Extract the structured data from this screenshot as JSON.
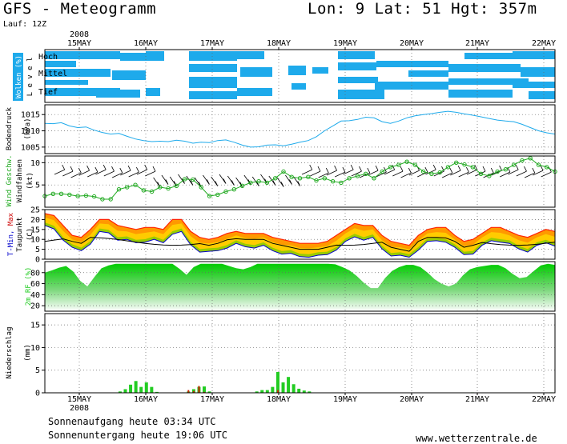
{
  "header": {
    "title": "GFS - Meteogramm",
    "location": "Lon: 9  Lat: 51  Hgt: 357m",
    "run": "Lauf: 12Z"
  },
  "footer": {
    "sunrise": "Sonnenaufgang heute 03:34 UTC",
    "sunset": "Sonnenuntergang heute 19:06 UTC",
    "credit": "www.wetterzentrale.de"
  },
  "colors": {
    "cloud": "#1eaaeb",
    "pressure": "#1eaaeb",
    "wind_speed": "#22aa22",
    "temp_max": "#ff2200",
    "temp_fill_hot": "#ff9900",
    "temp_fill_mid": "#ffcc00",
    "temp_fill_cool": "#99cc00",
    "temp_min": "#0000cc",
    "dewpoint": "#000000",
    "humidity": "#22cc22",
    "precip_rain": "#22cc22",
    "precip_conv": "#cc2200"
  },
  "chart_data": {
    "type": "line",
    "year": "2008",
    "x_axis_labels": [
      "15MAY",
      "16MAY",
      "17MAY",
      "18MAY",
      "19MAY",
      "20MAY",
      "21MAY",
      "22MAY"
    ],
    "panels": [
      {
        "name": "clouds",
        "ylabel": "Wolken (%)",
        "ylabel_colored": "Wolken",
        "ylabel_sub": "L e v e l",
        "levels": [
          "Hoch",
          "Mittel",
          "Tief"
        ]
      },
      {
        "name": "pressure",
        "ylabel": "Bodendruck",
        "ylabel2": "(hPa)",
        "ticks": [
          1005,
          1010,
          1015
        ],
        "ylim": [
          1003,
          1018
        ],
        "values": [
          1012.3,
          1012.2,
          1012.5,
          1011.5,
          1011,
          1011.2,
          1010.2,
          1009.5,
          1009,
          1009.2,
          1008.3,
          1007.5,
          1007,
          1006.7,
          1006.8,
          1006.7,
          1007.1,
          1006.8,
          1006.2,
          1006.5,
          1006.4,
          1007,
          1007.2,
          1006.5,
          1005.6,
          1005,
          1005.1,
          1005.6,
          1005.7,
          1005.4,
          1005.9,
          1006.5,
          1007,
          1008.2,
          1010,
          1011.5,
          1013,
          1013.1,
          1013.5,
          1014.2,
          1014,
          1012.8,
          1012.3,
          1013,
          1014,
          1014.6,
          1015,
          1015.3,
          1015.7,
          1016,
          1015.7,
          1015.2,
          1014.8,
          1014.3,
          1013.8,
          1013.3,
          1013,
          1012.8,
          1012,
          1011,
          1010,
          1009.4,
          1009
        ]
      },
      {
        "name": "wind",
        "ylabel": "Wind Geschw.",
        "ylabel2": "Windfahnen",
        "ylabel3": "(kt)",
        "ticks": [
          5,
          10
        ],
        "ylim": [
          0,
          11.5
        ],
        "speed_values": [
          2.5,
          3,
          3,
          2.8,
          2.5,
          2.6,
          2.4,
          1.8,
          1.8,
          4,
          4.5,
          5,
          3.8,
          3.5,
          4.5,
          4.2,
          4.8,
          6.3,
          6.2,
          4.5,
          2.5,
          2.8,
          3.5,
          4,
          4.8,
          5.5,
          5.8,
          5.5,
          6.5,
          8,
          6.8,
          6.5,
          6.8,
          6,
          6.5,
          5.8,
          5.5,
          6.5,
          7,
          7.5,
          6.5,
          8,
          9,
          9.5,
          10.2,
          9.5,
          8,
          7.5,
          7.8,
          9,
          10,
          9.6,
          9,
          7.5,
          7,
          8,
          8.5,
          9.5,
          10.5,
          11,
          9.5,
          9,
          8
        ]
      },
      {
        "name": "temperature",
        "ylabel": "T-Min, Max",
        "ylabel2": "Taupunkt",
        "ylabel3": "(C)",
        "ticks": [
          0,
          5,
          10,
          15,
          20,
          25
        ],
        "ylim": [
          0,
          25
        ],
        "t_max": [
          23,
          22,
          17,
          12,
          11,
          15,
          20,
          20,
          17,
          16,
          15,
          16,
          16,
          15,
          20,
          20,
          14,
          11,
          10,
          11,
          13,
          14,
          13,
          13,
          13,
          11,
          10,
          9,
          8,
          8,
          8,
          9,
          12,
          15,
          18,
          17,
          17,
          12,
          9,
          8,
          7,
          12,
          15,
          16,
          16,
          12,
          9,
          10,
          13,
          16,
          16,
          14,
          12,
          11,
          13,
          15,
          14
        ]
      },
      {
        "name": "humidity",
        "ylabel": "2m RF (%)",
        "ticks": [
          20,
          40,
          60,
          80
        ],
        "ylim": [
          10,
          100
        ],
        "values": [
          80,
          84,
          89,
          92,
          82,
          65,
          55,
          72,
          88,
          93,
          96,
          96,
          96,
          96,
          96,
          96,
          96,
          96,
          96,
          87,
          76,
          90,
          96,
          96,
          96,
          96,
          92,
          88,
          86,
          90,
          96,
          96,
          96,
          96,
          96,
          96,
          96,
          96,
          96,
          96,
          96,
          95,
          90,
          84,
          74,
          62,
          52,
          52,
          70,
          83,
          90,
          94,
          94,
          90,
          80,
          68,
          60,
          55,
          60,
          75,
          86,
          90,
          92,
          94,
          94,
          88,
          78,
          70,
          72,
          83,
          93,
          96,
          94
        ]
      },
      {
        "name": "precipitation",
        "ylabel": "Niederschlag",
        "ylabel2": "(mm)",
        "ticks": [
          0,
          5,
          10,
          15
        ],
        "ylim": [
          0,
          17.5
        ],
        "values": [
          0,
          0,
          0,
          0,
          0,
          0,
          0,
          0,
          0,
          0,
          0,
          0,
          0,
          0,
          0.3,
          0.8,
          1.8,
          2.6,
          1.3,
          2.3,
          1.3,
          0.2,
          0,
          0,
          0,
          0,
          0,
          0.3,
          0.8,
          1.3,
          1.4,
          0.3,
          0,
          0,
          0,
          0,
          0,
          0,
          0,
          0,
          0.3,
          0.6,
          0.6,
          1.3,
          4.6,
          2.3,
          3.5,
          1.9,
          0.9,
          0.5,
          0.3,
          0,
          0,
          0,
          0,
          0,
          0,
          0,
          0,
          0,
          0,
          0,
          0,
          0,
          0,
          0,
          0,
          0,
          0,
          0,
          0,
          0,
          0,
          0,
          0,
          0,
          0,
          0,
          0,
          0,
          0,
          0.1,
          0,
          0,
          0,
          0,
          0,
          0,
          0,
          0,
          0,
          0,
          0,
          0,
          0,
          0,
          0.1
        ],
        "convective": [
          0,
          0,
          0,
          0,
          0,
          0,
          0,
          0,
          0,
          0,
          0,
          0,
          0,
          0,
          0,
          0,
          0,
          0,
          0,
          0,
          0,
          0,
          0,
          0,
          0,
          0,
          0,
          0.6,
          0.4,
          1.5,
          0.2,
          0,
          0,
          0,
          0,
          0,
          0,
          0,
          0,
          0,
          0,
          0,
          0,
          0,
          0.6,
          0,
          0,
          0,
          0,
          0,
          0,
          0,
          0,
          0,
          0,
          0,
          0,
          0,
          0,
          0,
          0,
          0,
          0,
          0,
          0,
          0,
          0,
          0,
          0,
          0,
          0,
          0,
          0,
          0,
          0,
          0,
          0,
          0,
          0,
          0,
          0,
          0,
          0,
          0,
          0,
          0,
          0,
          0,
          0,
          0,
          0,
          0,
          0,
          0,
          0,
          0
        ]
      }
    ]
  }
}
